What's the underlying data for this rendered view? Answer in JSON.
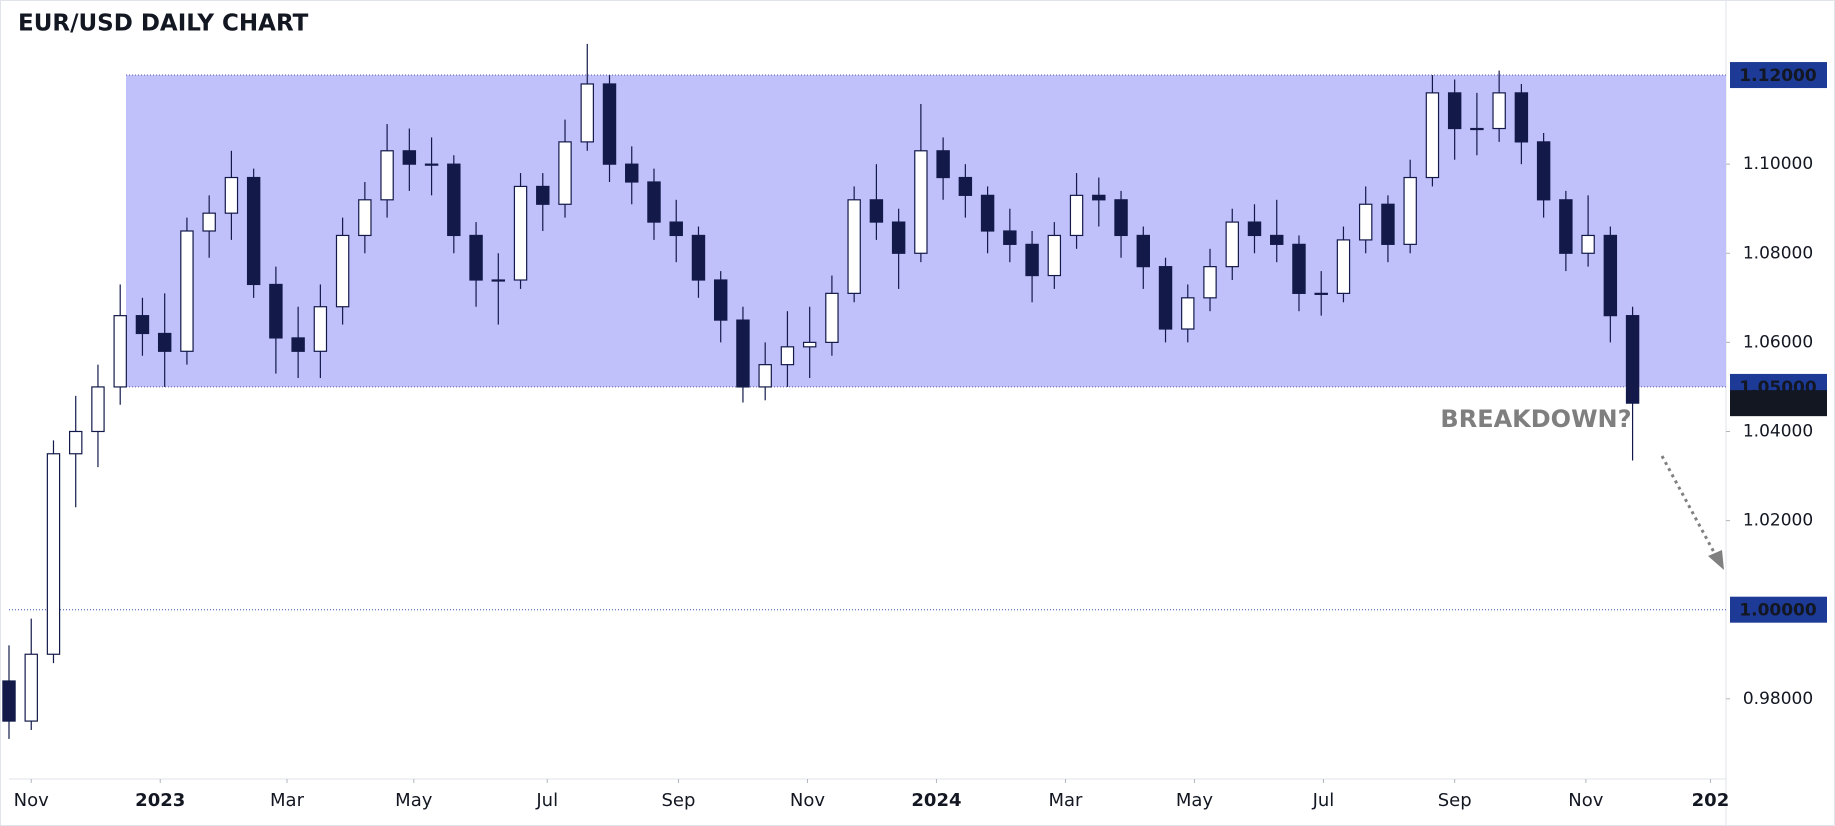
{
  "chart_data": {
    "type": "candlestick",
    "title": "EUR/USD DAILY CHART",
    "xlim": [
      0,
      77.2
    ],
    "xticks": [
      {
        "value": 1.0,
        "label": "Nov"
      },
      {
        "value": 6.8,
        "label": "2023"
      },
      {
        "value": 12.5,
        "label": "Mar"
      },
      {
        "value": 18.2,
        "label": "May"
      },
      {
        "value": 24.2,
        "label": "Jul"
      },
      {
        "value": 30.1,
        "label": "Sep"
      },
      {
        "value": 35.9,
        "label": "Nov"
      },
      {
        "value": 41.7,
        "label": "2024"
      },
      {
        "value": 47.5,
        "label": "Mar"
      },
      {
        "value": 53.3,
        "label": "May"
      },
      {
        "value": 59.1,
        "label": "Jul"
      },
      {
        "value": 65.0,
        "label": "Sep"
      },
      {
        "value": 70.9,
        "label": "Nov"
      },
      {
        "value": 76.5,
        "label": "202"
      }
    ],
    "ylim": [
      0.962,
      1.1355
    ],
    "yticks": [
      {
        "value": 0.98,
        "label": "0.98000"
      },
      {
        "value": 1.02,
        "label": "1.02000"
      },
      {
        "value": 1.04,
        "label": "1.04000"
      },
      {
        "value": 1.06,
        "label": "1.06000"
      },
      {
        "value": 1.08,
        "label": "1.08000"
      },
      {
        "value": 1.1,
        "label": "1.10000"
      }
    ],
    "price_labels": [
      {
        "value": 1.12,
        "label": "1.12000",
        "color": "#1c3a96"
      },
      {
        "value": 1.05,
        "label": "1.05000",
        "color": "#1c3a96"
      },
      {
        "value": 1.04636,
        "label": "1.04636",
        "color": "#131722"
      },
      {
        "value": 1.0,
        "label": "1.00000",
        "color": "#1c3a96"
      }
    ],
    "zone": {
      "low": 1.05,
      "high": 1.12,
      "color": "#c0c0fa"
    },
    "level": 1.0,
    "annotation": "BREAKDOWN?",
    "up_color": "#ffffff",
    "down_color": "#131a4a",
    "open": [
      0.984,
      0.975,
      0.99,
      1.035,
      1.04,
      1.05,
      1.066,
      1.062,
      1.058,
      1.085,
      1.089,
      1.097,
      1.073,
      1.061,
      1.058,
      1.068,
      1.084,
      1.092,
      1.103,
      1.1,
      1.1,
      1.084,
      1.074,
      1.074,
      1.095,
      1.091,
      1.105,
      1.118,
      1.1,
      1.096,
      1.087,
      1.084,
      1.074,
      1.065,
      1.05,
      1.055,
      1.059,
      1.06,
      1.071,
      1.092,
      1.087,
      1.08,
      1.103,
      1.097,
      1.093,
      1.085,
      1.082,
      1.075,
      1.084,
      1.093,
      1.092,
      1.084,
      1.077,
      1.063,
      1.07,
      1.077,
      1.087,
      1.084,
      1.082,
      1.071,
      1.071,
      1.083,
      1.091,
      1.082,
      1.097,
      1.116,
      1.108,
      1.108,
      1.116,
      1.105,
      1.092,
      1.08,
      1.084,
      1.066
    ],
    "high": [
      0.992,
      0.998,
      1.038,
      1.048,
      1.055,
      1.073,
      1.07,
      1.071,
      1.088,
      1.093,
      1.103,
      1.099,
      1.077,
      1.068,
      1.073,
      1.088,
      1.096,
      1.109,
      1.108,
      1.106,
      1.102,
      1.087,
      1.08,
      1.098,
      1.098,
      1.11,
      1.127,
      1.12,
      1.104,
      1.099,
      1.092,
      1.086,
      1.076,
      1.068,
      1.06,
      1.067,
      1.068,
      1.075,
      1.095,
      1.1,
      1.09,
      1.1135,
      1.106,
      1.1,
      1.095,
      1.09,
      1.085,
      1.087,
      1.098,
      1.097,
      1.094,
      1.086,
      1.079,
      1.073,
      1.081,
      1.09,
      1.091,
      1.092,
      1.084,
      1.076,
      1.086,
      1.095,
      1.093,
      1.101,
      1.12,
      1.119,
      1.116,
      1.121,
      1.118,
      1.107,
      1.094,
      1.093,
      1.086,
      1.068
    ],
    "low": [
      0.971,
      0.973,
      0.988,
      1.023,
      1.032,
      1.046,
      1.057,
      1.05,
      1.055,
      1.079,
      1.083,
      1.07,
      1.053,
      1.052,
      1.052,
      1.064,
      1.08,
      1.088,
      1.094,
      1.093,
      1.08,
      1.068,
      1.064,
      1.072,
      1.085,
      1.088,
      1.103,
      1.096,
      1.091,
      1.083,
      1.078,
      1.07,
      1.06,
      1.0465,
      1.047,
      1.05,
      1.052,
      1.057,
      1.069,
      1.083,
      1.072,
      1.078,
      1.092,
      1.088,
      1.08,
      1.078,
      1.069,
      1.072,
      1.081,
      1.086,
      1.079,
      1.072,
      1.06,
      1.06,
      1.067,
      1.074,
      1.08,
      1.078,
      1.067,
      1.066,
      1.069,
      1.08,
      1.078,
      1.08,
      1.095,
      1.101,
      1.102,
      1.105,
      1.1,
      1.088,
      1.076,
      1.077,
      1.06,
      1.0335
    ],
    "close": [
      0.975,
      0.99,
      1.035,
      1.04,
      1.05,
      1.066,
      1.062,
      1.058,
      1.085,
      1.089,
      1.097,
      1.073,
      1.061,
      1.058,
      1.068,
      1.084,
      1.092,
      1.103,
      1.1,
      1.1,
      1.084,
      1.074,
      1.074,
      1.095,
      1.091,
      1.105,
      1.118,
      1.1,
      1.096,
      1.087,
      1.084,
      1.074,
      1.065,
      1.05,
      1.055,
      1.059,
      1.06,
      1.071,
      1.092,
      1.087,
      1.08,
      1.103,
      1.097,
      1.093,
      1.085,
      1.082,
      1.075,
      1.084,
      1.093,
      1.092,
      1.084,
      1.077,
      1.063,
      1.07,
      1.077,
      1.087,
      1.084,
      1.082,
      1.071,
      1.071,
      1.083,
      1.091,
      1.082,
      1.097,
      1.116,
      1.108,
      1.108,
      1.116,
      1.105,
      1.092,
      1.08,
      1.084,
      1.066,
      1.04636
    ]
  }
}
